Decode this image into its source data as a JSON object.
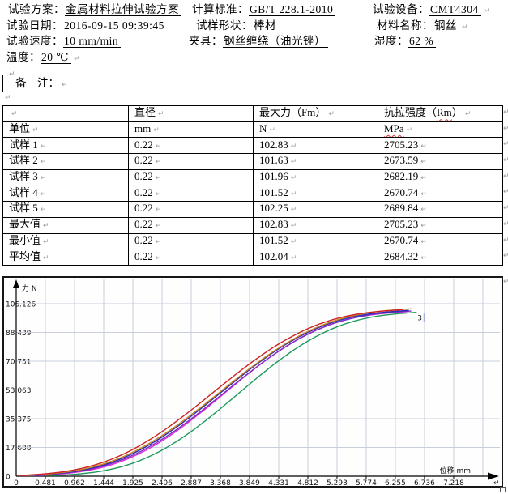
{
  "info": {
    "col1": [
      {
        "label": "试验方案：",
        "value": "金属材料拉伸试验方案"
      },
      {
        "label": "试验日期：",
        "value": "2016-09-15 09:39:45"
      },
      {
        "label": "试验速度：",
        "value": "10 mm/min"
      },
      {
        "label": "温度：",
        "value": "20 ℃",
        "pm": true
      },
      {
        "label": "",
        "value": "",
        "pm": true
      }
    ],
    "col2": [
      {
        "label": "计算标准：",
        "value": "GB/T 228.1-2010"
      },
      {
        "label": "试样形状：",
        "value": "棒材"
      },
      {
        "label": "夹具：",
        "value": "钢丝缠绕（油光锉）"
      }
    ],
    "col3": [
      {
        "label": "试验设备：",
        "value": "CMT4304",
        "pm": true
      },
      {
        "label": "材料名称：",
        "value": "钢丝",
        "pm": true
      },
      {
        "label": "湿度：",
        "value": "62 %"
      }
    ]
  },
  "remark": {
    "label": "备　注：",
    "pm": "↵"
  },
  "table": {
    "columns": [
      "",
      "直径",
      "最大力（Fm）",
      "抗拉强度（Rm）"
    ],
    "units": [
      "单位",
      "mm",
      "N",
      "MPa"
    ],
    "rows": [
      [
        "试样 1",
        "0.22",
        "102.83",
        "2705.23"
      ],
      [
        "试样 2",
        "0.22",
        "101.63",
        "2673.59"
      ],
      [
        "试样 3",
        "0.22",
        "101.96",
        "2682.19"
      ],
      [
        "试样 4",
        "0.22",
        "101.52",
        "2670.74"
      ],
      [
        "试样 5",
        "0.22",
        "102.25",
        "2689.84"
      ],
      [
        "最大值",
        "0.22",
        "102.83",
        "2705.23"
      ],
      [
        "最小值",
        "0.22",
        "101.52",
        "2670.74"
      ],
      [
        "平均值",
        "0.22",
        "102.04",
        "2684.32"
      ]
    ],
    "misspelled": [
      "Rm",
      "MPa"
    ],
    "pm": "↵"
  },
  "chart_data": {
    "type": "line",
    "title": "",
    "xlabel": "位移 mm",
    "ylabel": "力 N",
    "x_ticks": [
      "0",
      "0.481",
      "0.962",
      "1.444",
      "1.925",
      "2.406",
      "2.887",
      "3.368",
      "3.849",
      "4.331",
      "4.812",
      "5.293",
      "5.774",
      "6.255",
      "6.736",
      "7.218"
    ],
    "y_ticks": [
      "0",
      "17.688",
      "35.375",
      "53.063",
      "70.751",
      "88.439",
      "106.126"
    ],
    "xlim": [
      0,
      7.218
    ],
    "ylim": [
      0,
      106.126
    ],
    "grid": true,
    "gridline_color": "#c8cedb",
    "series": [
      {
        "name": "curve-green",
        "color": "#1e9a5a",
        "x_start": 0.72,
        "x_end": 6.6,
        "f_max": 100.8
      },
      {
        "name": "curve-magenta",
        "color": "#dc2cdc",
        "x_start": 0.42,
        "x_end": 6.44,
        "f_max": 101.2
      },
      {
        "name": "curve-violet",
        "color": "#7d2cc8",
        "x_start": 0.33,
        "x_end": 6.51,
        "f_max": 101.6
      },
      {
        "name": "curve-blue",
        "color": "#2b2bb4",
        "x_start": 0.27,
        "x_end": 6.47,
        "f_max": 102.0
      },
      {
        "name": "curve-orange",
        "color": "#c8871e",
        "x_start": 0.2,
        "x_end": 6.52,
        "f_max": 103.0
      },
      {
        "name": "curve-red",
        "color": "#cf2020",
        "x_start": 0.12,
        "x_end": 6.38,
        "f_max": 102.5
      }
    ],
    "annotation": {
      "text": "3",
      "color": "#d86ad8",
      "x": 6.62,
      "y": 99.0
    },
    "pm": "↵"
  }
}
